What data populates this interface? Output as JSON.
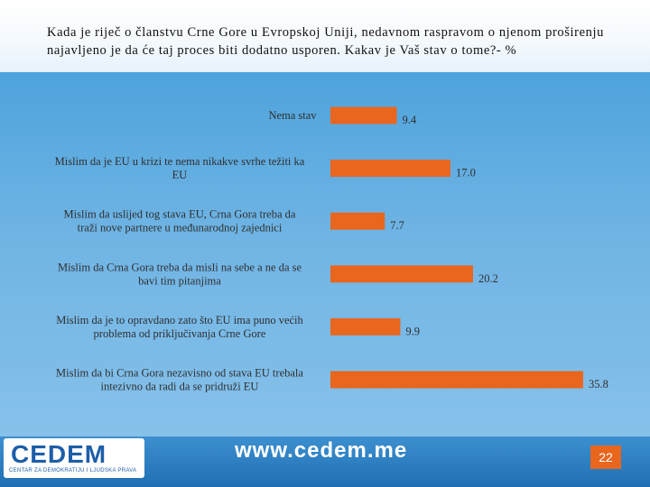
{
  "title": "Kada je riječ o članstvu Crne Gore u Evropskoj Uniji, nedavnom raspravom o njenom proširenju najavljeno je da će taj proces biti dodatno usporen. Kakav je Vaš stav o tome?- %",
  "footer": {
    "logo_text": "CEDEM",
    "logo_subtext": "CENTAR ZA DEMOKRATIJU I LJUDSKA PRAVA",
    "website": "www.cedem.me",
    "page_number": "22"
  },
  "colors": {
    "bar": "#e8661e",
    "background": "#5aa9df"
  },
  "chart_data": {
    "type": "bar",
    "orientation": "horizontal",
    "title": "",
    "xlabel": "",
    "ylabel": "",
    "xlim": [
      0,
      40
    ],
    "grid": false,
    "categories": [
      [
        "Nema stav"
      ],
      [
        "Mislim da je EU u krizi te nema nikakve svrhe težiti ka",
        "EU"
      ],
      [
        "Mislim da uslijed tog stava EU, Crna Gora treba da",
        "traži nove partnere u međunarodnoj zajednici"
      ],
      [
        "Mislim da Crna Gora treba da misli na sebe a ne da se",
        "bavi tim pitanjima"
      ],
      [
        "Mislim da je to opravdano zato što EU ima puno većih",
        "problema od  priključivanja Crne Gore"
      ],
      [
        "Mislim da bi Crna Gora nezavisno od stava EU trebala",
        "intezivno da radi da se pridruži EU"
      ]
    ],
    "values": [
      9.4,
      17.0,
      7.7,
      20.2,
      9.9,
      35.8
    ],
    "value_labels": [
      "9.4",
      "17.0",
      "7.7",
      "20.2",
      "9.9",
      "35.8"
    ]
  }
}
